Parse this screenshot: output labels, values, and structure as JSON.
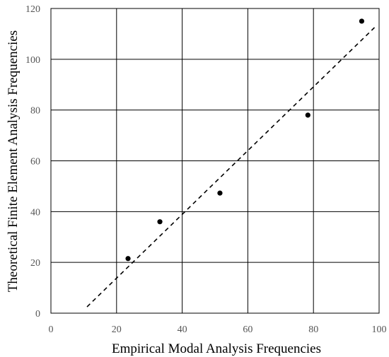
{
  "chart_data": {
    "type": "scatter",
    "title": "",
    "xlabel": "Empirical Modal Analysis Frequencies",
    "ylabel": "Theoretical Finite Element Analysis Frequencies",
    "xlim": [
      0,
      100
    ],
    "ylim": [
      0,
      120
    ],
    "xticks": [
      0,
      20,
      40,
      60,
      80,
      100
    ],
    "yticks": [
      0,
      20,
      40,
      60,
      80,
      100,
      120
    ],
    "xtick_labels": [
      "0",
      "20",
      "40",
      "60",
      "80",
      "100"
    ],
    "ytick_labels": [
      "0",
      "20",
      "40",
      "60",
      "80",
      "100",
      "120"
    ],
    "grid": true,
    "series": [
      {
        "points": [
          {
            "x": 23.5,
            "y": 21.5
          },
          {
            "x": 33.2,
            "y": 36.0
          },
          {
            "x": 51.5,
            "y": 47.3
          },
          {
            "x": 78.3,
            "y": 78.0
          },
          {
            "x": 94.7,
            "y": 115.0
          }
        ]
      }
    ],
    "trendline": {
      "style": "dashed",
      "x": [
        11,
        98.6
      ],
      "y": [
        2.5,
        112.5
      ]
    },
    "colors": {
      "point": "#000000",
      "trendline": "#000000",
      "grid": "#000000"
    }
  }
}
